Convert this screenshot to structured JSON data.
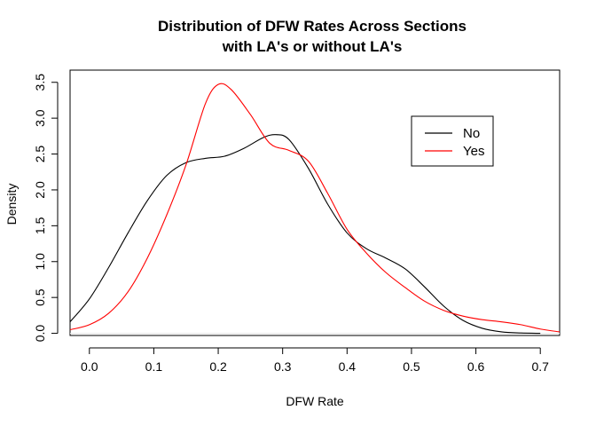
{
  "chart_data": {
    "type": "line",
    "title_line1": "Distribution of DFW Rates Across Sections",
    "title_line2": "with LA's or without LA's",
    "xlabel": "DFW Rate",
    "ylabel": "Density",
    "xlim": [
      -0.03,
      0.73
    ],
    "ylim": [
      -0.03,
      3.67
    ],
    "xticks": [
      0.0,
      0.1,
      0.2,
      0.3,
      0.4,
      0.5,
      0.6,
      0.7
    ],
    "xtick_labels": [
      "0.0",
      "0.1",
      "0.2",
      "0.3",
      "0.4",
      "0.5",
      "0.6",
      "0.7"
    ],
    "yticks": [
      0.0,
      0.5,
      1.0,
      1.5,
      2.0,
      2.5,
      3.0,
      3.5
    ],
    "ytick_labels": [
      "0.0",
      "0.5",
      "1.0",
      "1.5",
      "2.0",
      "2.5",
      "3.0",
      "3.5"
    ],
    "legend_position": "top-right",
    "grid": false,
    "series": [
      {
        "name": "No",
        "color": "#000000",
        "x": [
          -0.03,
          0.0,
          0.03,
          0.06,
          0.09,
          0.12,
          0.15,
          0.18,
          0.21,
          0.24,
          0.27,
          0.29,
          0.31,
          0.34,
          0.37,
          0.4,
          0.43,
          0.46,
          0.49,
          0.52,
          0.55,
          0.58,
          0.61,
          0.64,
          0.67,
          0.7
        ],
        "y": [
          0.16,
          0.48,
          0.92,
          1.4,
          1.85,
          2.2,
          2.38,
          2.44,
          2.47,
          2.58,
          2.73,
          2.77,
          2.7,
          2.3,
          1.8,
          1.4,
          1.18,
          1.05,
          0.9,
          0.65,
          0.38,
          0.18,
          0.07,
          0.02,
          0.005,
          0.0
        ]
      },
      {
        "name": "Yes",
        "color": "#ff0000",
        "x": [
          -0.03,
          0.0,
          0.03,
          0.06,
          0.09,
          0.12,
          0.15,
          0.18,
          0.2,
          0.22,
          0.25,
          0.28,
          0.31,
          0.34,
          0.37,
          0.4,
          0.43,
          0.46,
          0.49,
          0.52,
          0.55,
          0.58,
          0.61,
          0.64,
          0.67,
          0.7,
          0.73
        ],
        "y": [
          0.05,
          0.12,
          0.28,
          0.58,
          1.05,
          1.65,
          2.35,
          3.2,
          3.47,
          3.4,
          3.05,
          2.65,
          2.55,
          2.4,
          1.95,
          1.45,
          1.12,
          0.85,
          0.64,
          0.45,
          0.32,
          0.24,
          0.19,
          0.16,
          0.12,
          0.06,
          0.02
        ]
      }
    ]
  }
}
